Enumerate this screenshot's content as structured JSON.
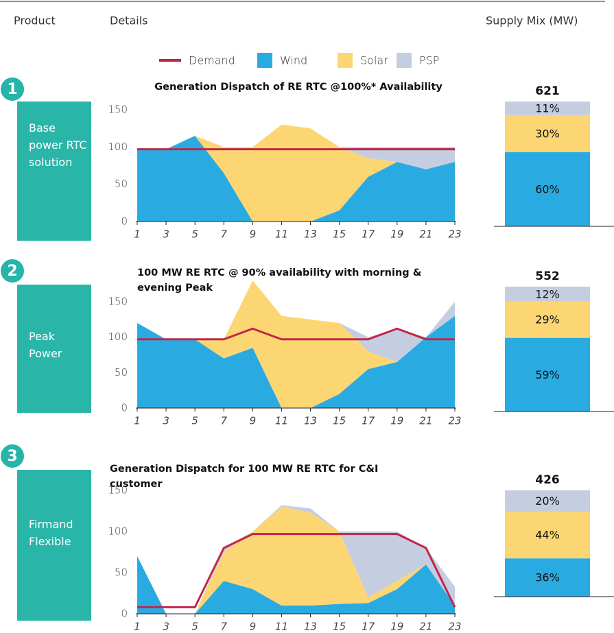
{
  "header": {
    "product": "Product",
    "details": "Details",
    "supply_mix": "Supply Mix (MW)"
  },
  "products": [
    {
      "number": 1,
      "label": "Base power RTC solution"
    },
    {
      "number": 2,
      "label": "Peak Power"
    },
    {
      "number": 3,
      "label": "Firmand Flexible"
    }
  ],
  "chart_data": [
    {
      "type": "area",
      "title": "Generation Dispatch of RE RTC @100%* Availability",
      "x": [
        1,
        3,
        5,
        7,
        9,
        11,
        13,
        15,
        17,
        19,
        21,
        23
      ],
      "xlim": [
        1,
        23
      ],
      "xticks": [
        1,
        3,
        5,
        7,
        9,
        11,
        13,
        15,
        17,
        19,
        21,
        23
      ],
      "ylim": [
        0,
        150
      ],
      "yticks": [
        0,
        50,
        100,
        150
      ],
      "series": [
        {
          "name": "Wind",
          "color": "#29abe2",
          "values": [
            97,
            97,
            115,
            65,
            0,
            0,
            0,
            15,
            60,
            80,
            70,
            80
          ]
        },
        {
          "name": "Solar",
          "color": "#fcd672",
          "values": [
            0,
            0,
            0,
            35,
            100,
            130,
            125,
            85,
            25,
            0,
            0,
            0
          ]
        },
        {
          "name": "PSP",
          "color": "#c5cee0",
          "values": [
            0,
            0,
            0,
            0,
            0,
            0,
            0,
            0,
            15,
            20,
            30,
            20
          ]
        },
        {
          "name": "Demand",
          "color": "#c0264a",
          "line": true,
          "values": [
            97,
            97,
            97,
            97,
            97,
            97,
            97,
            97,
            97,
            97,
            97,
            97
          ]
        }
      ]
    },
    {
      "type": "stacked_bar",
      "total": 621,
      "segments": [
        {
          "color": "#29abe2",
          "value": 60,
          "value_label": "60%"
        },
        {
          "color": "#fcd672",
          "value": 30,
          "value_label": "30%"
        },
        {
          "color": "#c5cee0",
          "value": 11,
          "value_label": "11%"
        }
      ]
    },
    {
      "type": "area",
      "title": "100 MW RE RTC @ 90% availability with morning & evening Peak",
      "x": [
        1,
        3,
        5,
        7,
        9,
        11,
        13,
        15,
        17,
        19,
        21,
        23
      ],
      "xlim": [
        1,
        23
      ],
      "xticks": [
        1,
        3,
        5,
        7,
        9,
        11,
        13,
        15,
        17,
        19,
        21,
        23
      ],
      "ylim": [
        0,
        150
      ],
      "yticks": [
        0,
        50,
        100,
        150
      ],
      "series": [
        {
          "name": "Wind",
          "color": "#29abe2",
          "values": [
            120,
            97,
            97,
            70,
            85,
            0,
            0,
            20,
            55,
            65,
            100,
            130
          ]
        },
        {
          "name": "Solar",
          "color": "#fcd672",
          "values": [
            0,
            0,
            0,
            27,
            95,
            130,
            125,
            100,
            25,
            0,
            0,
            0
          ]
        },
        {
          "name": "PSP",
          "color": "#c5cee0",
          "values": [
            0,
            0,
            0,
            0,
            0,
            0,
            0,
            0,
            20,
            47,
            0,
            20
          ]
        },
        {
          "name": "Demand",
          "color": "#c0264a",
          "line": true,
          "values": [
            97,
            97,
            97,
            97,
            112,
            97,
            97,
            97,
            97,
            112,
            97,
            97
          ]
        }
      ]
    },
    {
      "type": "stacked_bar",
      "total": 552,
      "segments": [
        {
          "color": "#29abe2",
          "value": 59,
          "value_label": "59%"
        },
        {
          "color": "#fcd672",
          "value": 29,
          "value_label": "29%"
        },
        {
          "color": "#c5cee0",
          "value": 12,
          "value_label": "12%"
        }
      ]
    },
    {
      "type": "area",
      "title": "Generation Dispatch for 100 MW RE RTC for C&I customer",
      "x": [
        1,
        3,
        5,
        7,
        9,
        11,
        13,
        15,
        17,
        19,
        21,
        23
      ],
      "xlim": [
        1,
        23
      ],
      "xticks": [
        1,
        3,
        5,
        7,
        9,
        11,
        13,
        15,
        17,
        19,
        21,
        23
      ],
      "ylim": [
        0,
        150
      ],
      "yticks": [
        0,
        50,
        100,
        150
      ],
      "series": [
        {
          "name": "Wind",
          "color": "#29abe2",
          "values": [
            70,
            0,
            0,
            40,
            30,
            10,
            10,
            12,
            13,
            30,
            60,
            10
          ]
        },
        {
          "name": "Solar",
          "color": "#fcd672",
          "values": [
            0,
            0,
            0,
            35,
            70,
            120,
            113,
            88,
            7,
            10,
            0,
            0
          ]
        },
        {
          "name": "PSP",
          "color": "#c5cee0",
          "values": [
            0,
            0,
            0,
            5,
            0,
            2,
            5,
            0,
            80,
            60,
            20,
            23
          ]
        },
        {
          "name": "Demand",
          "color": "#c0264a",
          "line": true,
          "values": [
            8,
            8,
            8,
            80,
            97,
            97,
            97,
            97,
            97,
            97,
            80,
            8
          ]
        }
      ]
    },
    {
      "type": "stacked_bar",
      "total": 426,
      "segments": [
        {
          "color": "#29abe2",
          "value": 36,
          "value_label": "36%"
        },
        {
          "color": "#fcd672",
          "value": 44,
          "value_label": "44%"
        },
        {
          "color": "#c5cee0",
          "value": 20,
          "value_label": "20%"
        }
      ]
    }
  ]
}
